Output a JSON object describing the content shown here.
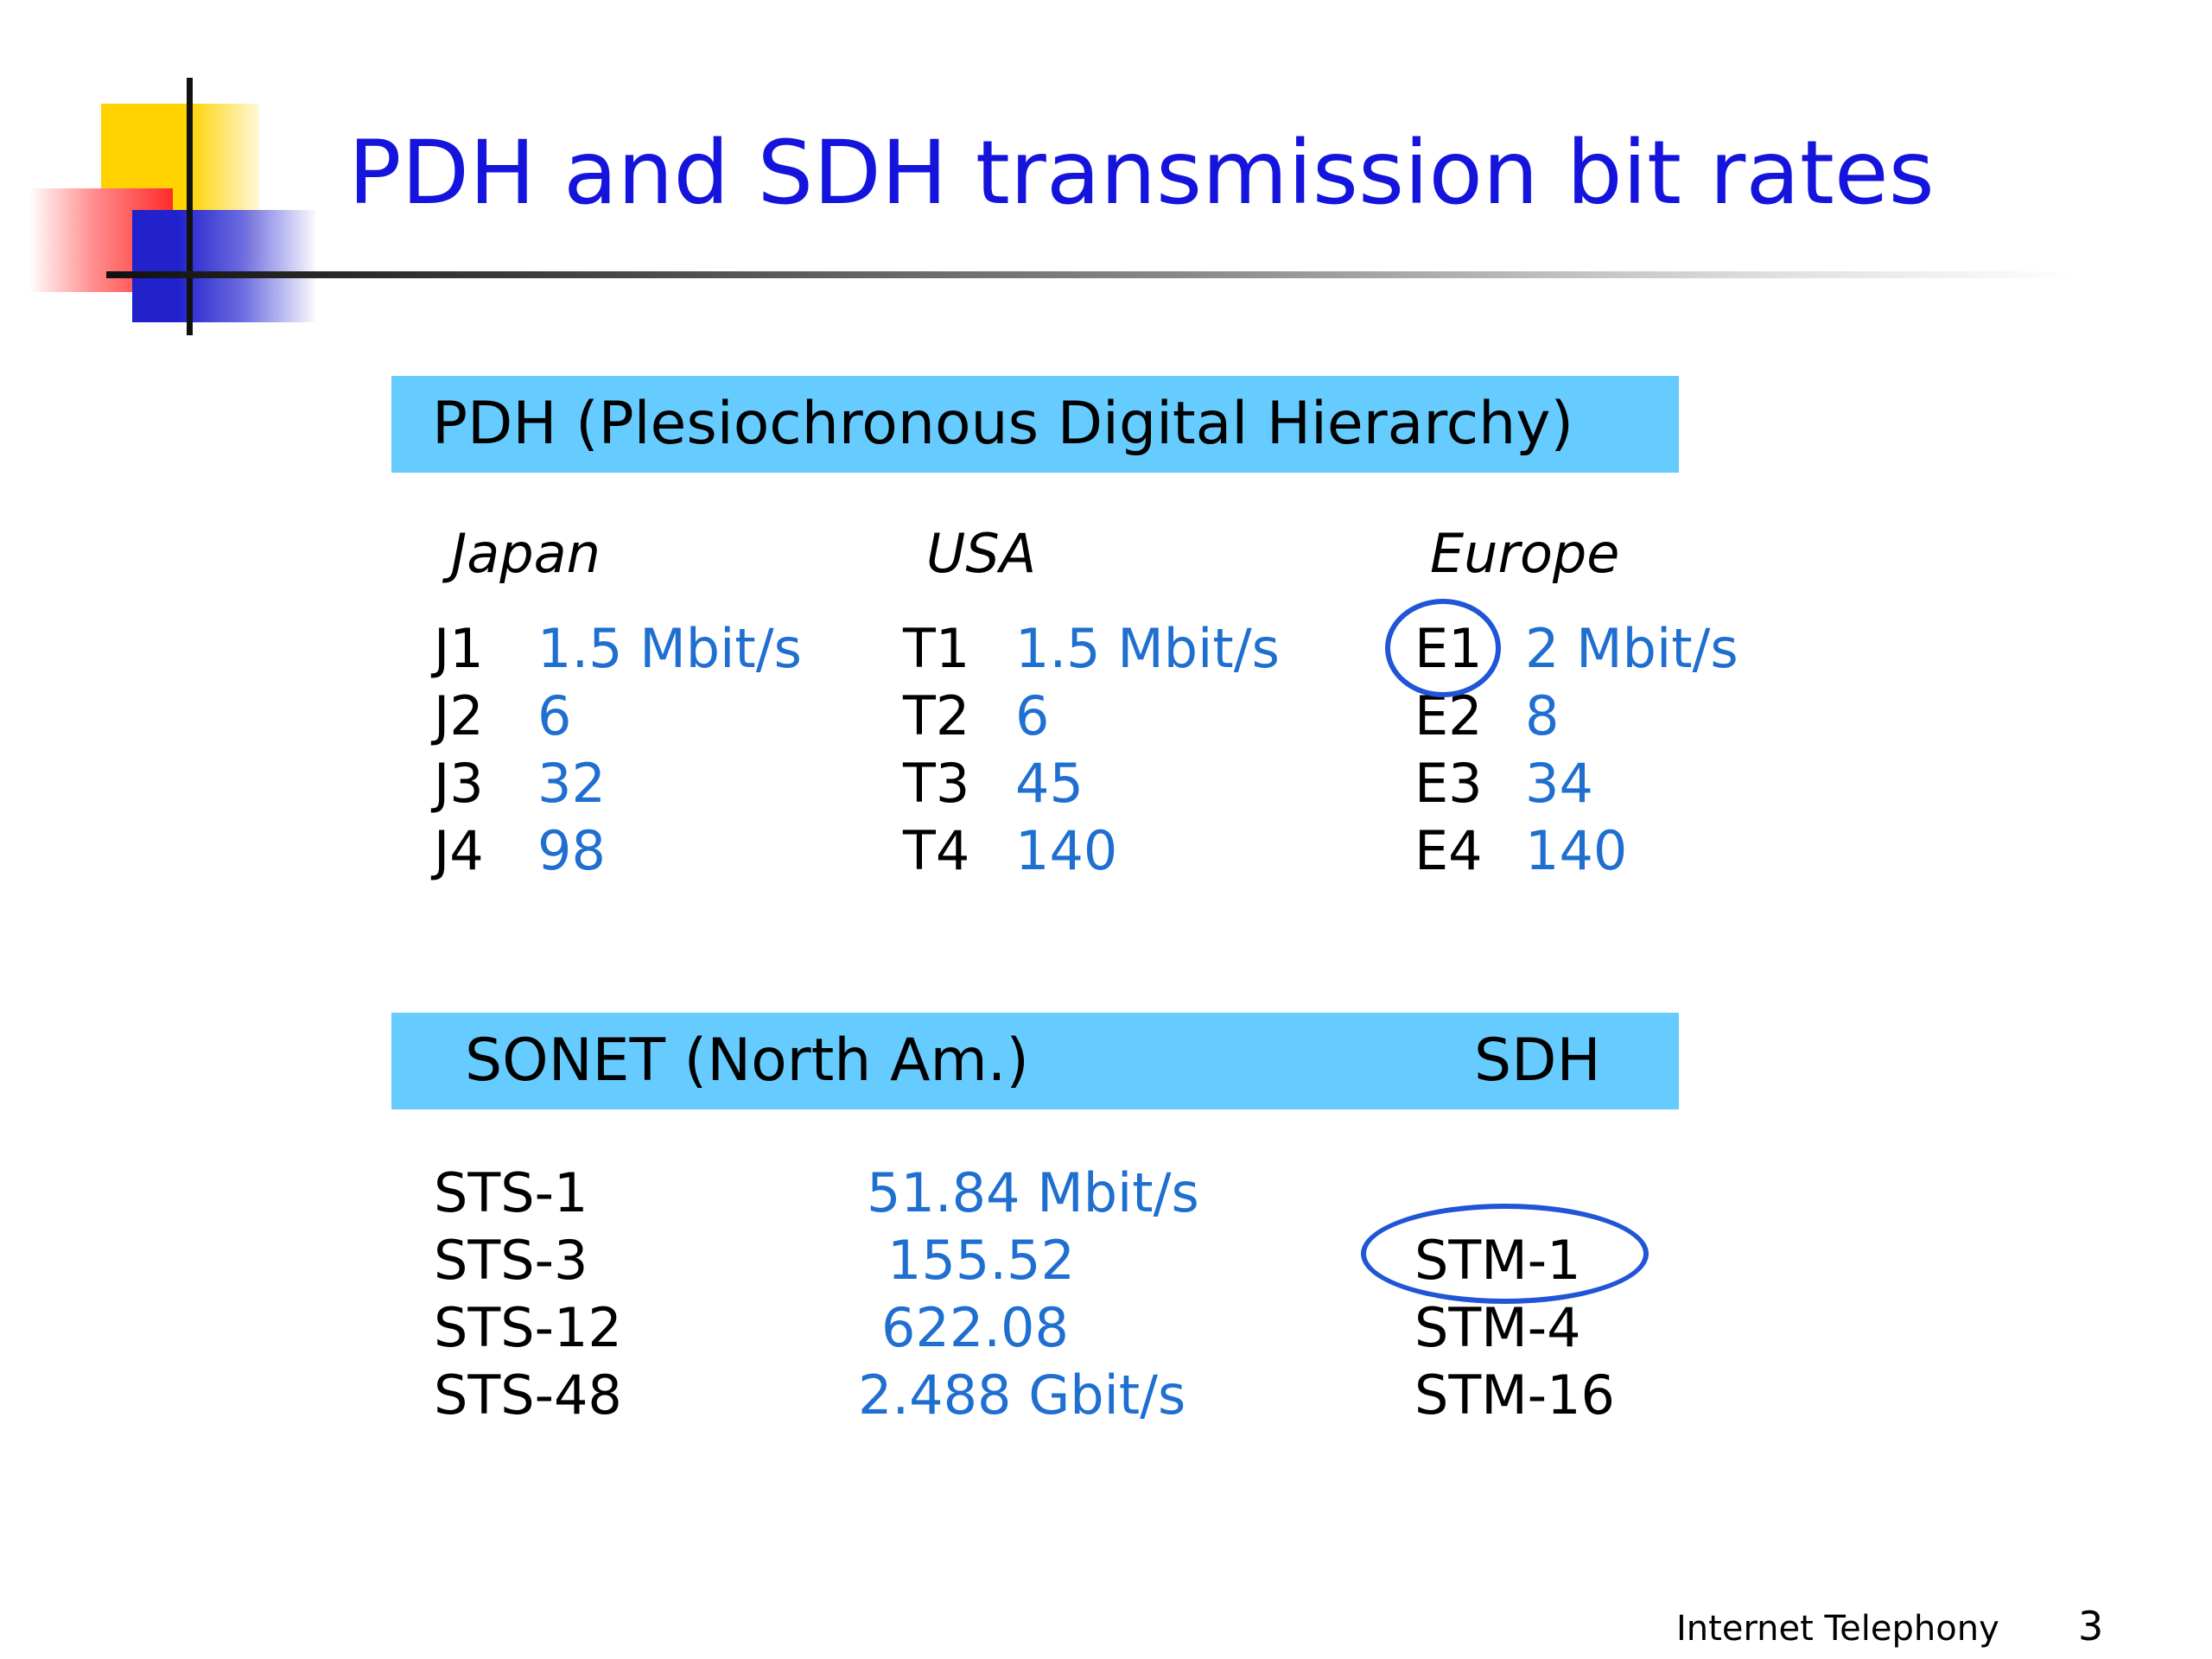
{
  "title": "PDH and SDH transmission bit rates",
  "pdh": {
    "header": "PDH (Plesiochronous Digital Hierarchy)",
    "regions": {
      "japan": {
        "name": "Japan",
        "rows": [
          {
            "code": "J1",
            "rate": "1.5 Mbit/s"
          },
          {
            "code": "J2",
            "rate": "6"
          },
          {
            "code": "J3",
            "rate": "32"
          },
          {
            "code": "J4",
            "rate": "98"
          }
        ]
      },
      "usa": {
        "name": "USA",
        "rows": [
          {
            "code": "T1",
            "rate": "1.5 Mbit/s"
          },
          {
            "code": "T2",
            "rate": "6"
          },
          {
            "code": "T3",
            "rate": "45"
          },
          {
            "code": "T4",
            "rate": "140"
          }
        ]
      },
      "europe": {
        "name": "Europe",
        "rows": [
          {
            "code": "E1",
            "rate": "2 Mbit/s"
          },
          {
            "code": "E2",
            "rate": "8"
          },
          {
            "code": "E3",
            "rate": "34"
          },
          {
            "code": "E4",
            "rate": "140"
          }
        ]
      }
    }
  },
  "sonet": {
    "header_left": "SONET (North Am.)",
    "header_right": "SDH",
    "rows": [
      {
        "sts": "STS-1",
        "rate": "51.84 Mbit/s",
        "stm": ""
      },
      {
        "sts": "STS-3",
        "rate": "155.52",
        "stm": "STM-1"
      },
      {
        "sts": "STS-12",
        "rate": "622.08",
        "stm": "STM-4"
      },
      {
        "sts": "STS-48",
        "rate": "2.488 Gbit/s",
        "stm": "STM-16"
      }
    ]
  },
  "footer": {
    "label": "Internet Telephony",
    "page": "3"
  }
}
